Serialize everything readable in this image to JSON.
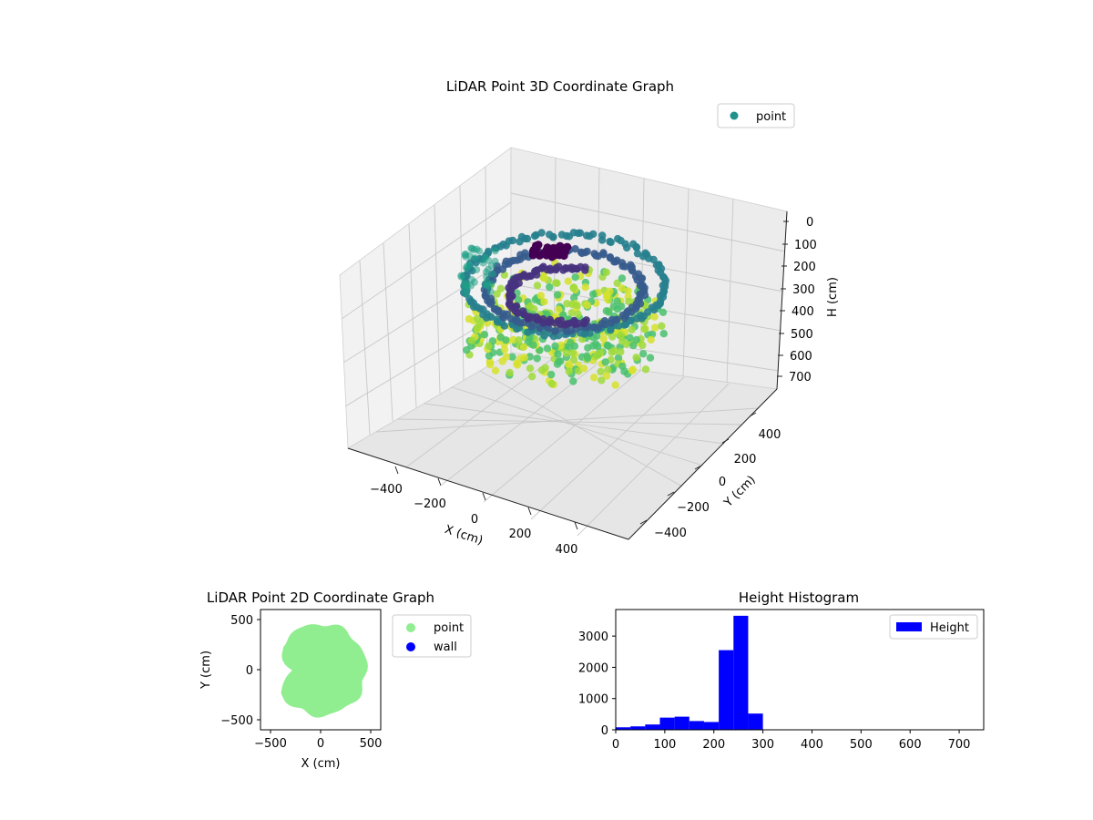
{
  "colors": {
    "hist_bar": "#0000ff",
    "point_2d": "#90ee90",
    "wall": "#0000ff",
    "legend_point_3d": "#21918c",
    "pane": "#f2f2f2",
    "grid": "#cfcfcf"
  },
  "chart_data": [
    {
      "type": "scatter",
      "dimensions": 3,
      "title": "LiDAR Point 3D Coordinate Graph",
      "xlabel": "X (cm)",
      "ylabel": "Y (cm)",
      "zlabel": "H (cm)",
      "x_ticks": [
        "−400",
        "−200",
        "0",
        "200",
        "400"
      ],
      "y_ticks": [
        "400",
        "200",
        "0",
        "−200",
        "−400"
      ],
      "z_ticks": [
        "0",
        "100",
        "200",
        "300",
        "400",
        "500",
        "600",
        "700"
      ],
      "xlim": [
        -550,
        550
      ],
      "ylim": [
        -550,
        550
      ],
      "zlim": [
        0,
        750
      ],
      "z_inverted": true,
      "colormap": "viridis (by height)",
      "legend": [
        "point"
      ],
      "legend_position": "upper right",
      "grid": true
    },
    {
      "type": "scatter",
      "title": "LiDAR Point 2D Coordinate Graph",
      "xlabel": "X (cm)",
      "ylabel": "Y (cm)",
      "x_ticks": [
        "−500",
        "0",
        "500"
      ],
      "y_ticks": [
        "500",
        "0",
        "−500"
      ],
      "xlim": [
        -600,
        600
      ],
      "ylim": [
        -600,
        600
      ],
      "legend": [
        "point",
        "wall"
      ],
      "legend_position": "outside right",
      "series": [
        {
          "name": "point",
          "shape": "filled disk of radius about 430 cm, with a notch on the left side",
          "color": "#90ee90"
        },
        {
          "name": "wall",
          "points": 0,
          "color": "#0000ff"
        }
      ]
    },
    {
      "type": "bar",
      "title": "Height Histogram",
      "xlabel": "",
      "ylabel": "",
      "x_ticks": [
        "0",
        "100",
        "200",
        "300",
        "400",
        "500",
        "600",
        "700"
      ],
      "y_ticks": [
        "0",
        "1000",
        "2000",
        "3000"
      ],
      "xlim": [
        0,
        750
      ],
      "ylim": [
        0,
        3850
      ],
      "bin_width": 30,
      "bin_edges": [
        0,
        30,
        60,
        90,
        120,
        150,
        180,
        210,
        240,
        270,
        300,
        330
      ],
      "values": [
        80,
        110,
        170,
        390,
        420,
        280,
        250,
        2550,
        3650,
        520,
        0
      ],
      "legend": [
        "Height"
      ],
      "legend_position": "upper right",
      "grid": false
    }
  ]
}
